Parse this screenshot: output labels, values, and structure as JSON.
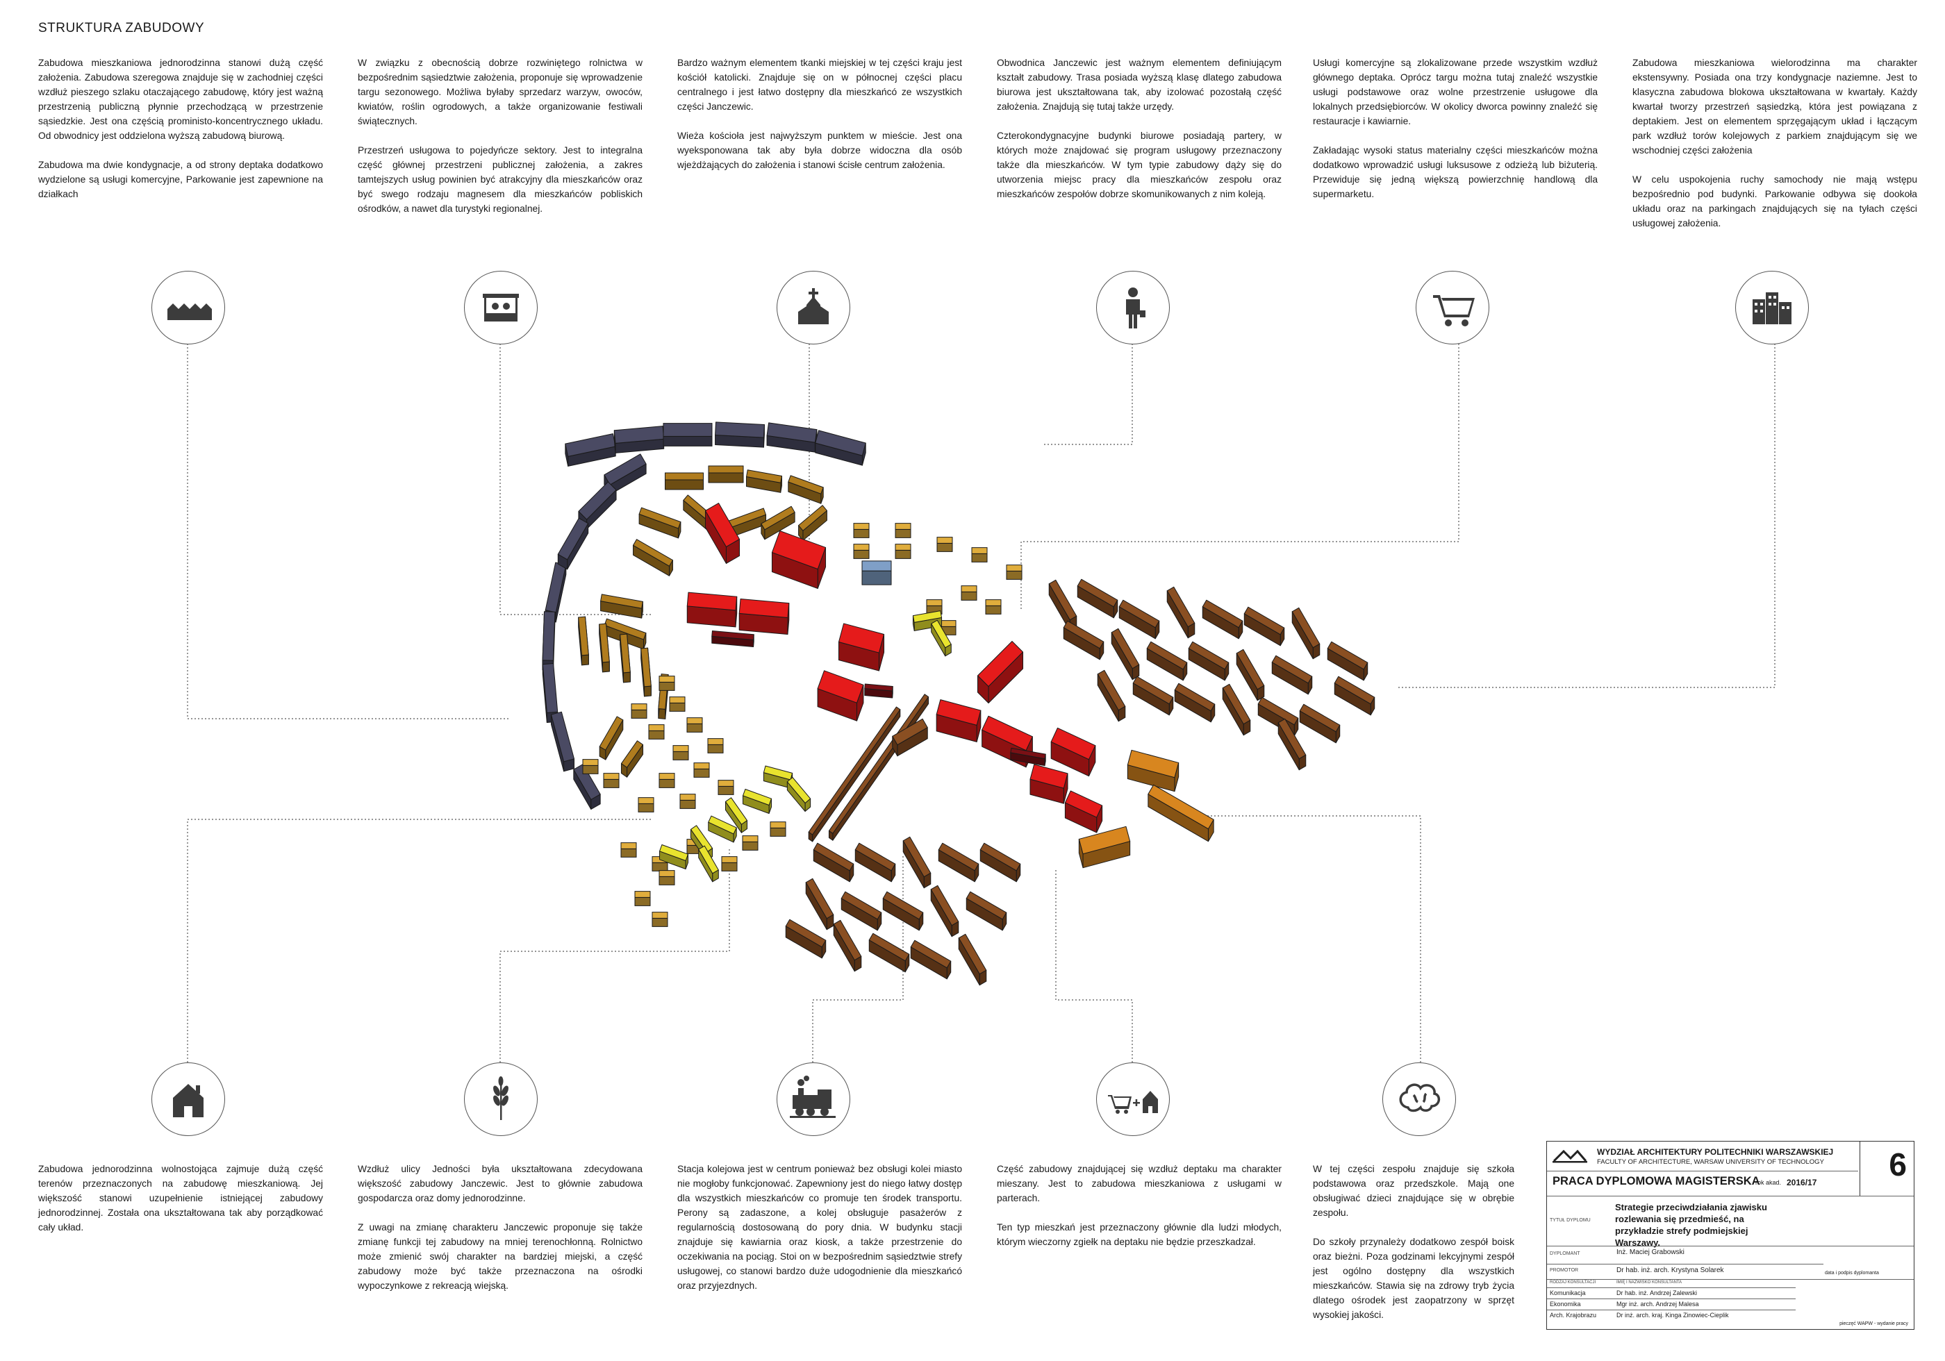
{
  "title": "STRUKTURA ZABUDOWY",
  "top_texts": [
    [
      "Zabudowa mieszkaniowa jednorodzinna stanowi dużą część założenia. Zabudowa szeregowa znajduje się w zachodniej części wzdłuż pieszego szlaku otaczającego zabudowę, który jest ważną przestrzenią publiczną płynnie przechodzącą w przestrzenie sąsiedzkie. Jest ona częścią proministo-koncentrycznego układu. Od obwodnicy jest oddzielona wyższą zabudową biurową.",
      "Zabudowa ma dwie kondygnacje, a od strony deptaka dodatkowo wydzielone są usługi komercyjne, Parkowanie jest zapewnione na działkach"
    ],
    [
      "W związku z obecnością dobrze rozwiniętego rolnictwa w bezpośrednim sąsiedztwie założenia, proponuje się wprowadzenie targu sezonowego. Możliwa byłaby sprzedarz warzyw, owoców, kwiatów, roślin ogrodowych, a także organizowanie festiwali świątecznych.",
      "Przestrzeń usługowa to pojedyńcze sektory. Jest to integralna część głównej przestrzeni publicznej założenia, a zakres tamtejszych usług powinien być atrakcyjny dla mieszkańców oraz być swego rodzaju magnesem dla mieszkańców pobliskich ośrodków, a nawet dla turystyki regionalnej."
    ],
    [
      "Bardzo ważnym elementem tkanki miejskiej w tej części kraju jest kościół katolicki. Znajduje się on w północnej części placu centralnego i jest łatwo dostępny dla mieszkańcó ze wszystkich części Janczewic.",
      "Wieża kościoła jest najwyższym punktem w mieście. Jest ona wyeksponowana tak aby była dobrze widoczna dla osób wjeżdżających do założenia i stanowi ścisłe centrum założenia."
    ],
    [
      "Obwodnica Janczewic jest ważnym elementem definiującym kształt zabudowy. Trasa posiada wyższą klasę dlatego zabudowa biurowa jest ukształtowana tak, aby izolować pozostałą część założenia. Znajdują się tutaj także urzędy.",
      "Czterokondygnacyjne budynki biurowe posiadają partery, w których może znajdować się program usługowy przeznaczony także dla mieszkańców. W tym typie zabudowy dąży się do utworzenia miejsc pracy dla mieszkańców zespołu oraz mieszkańców zespołów dobrze skomunikowanych z nim koleją."
    ],
    [
      "Usługi komercyjne  są zlokalizowane przede wszystkim wzdłuż głównego deptaka. Oprócz targu można tutaj znaleźć wszystkie usługi podstawowe oraz wolne przestrzenie usługowe dla lokalnych przedsiębiorców. W okolicy dworca powinny znaleźć się restauracje i kawiarnie.",
      "Zakładając wysoki status materialny części mieszkańców można dodatkowo wprowadzić usługi luksusowe z odzieżą lub biżuterią. Przewiduje się jedną większą powierzchnię handlową dla supermarketu."
    ],
    [
      "Zabudowa mieszkaniowa wielorodzinna ma charakter ekstensywny. Posiada ona trzy kondygnacje naziemne. Jest to klasyczna zabudowa blokowa ukształtowana w kwartały. Każdy kwartał tworzy przestrzeń sąsiedzką, która jest powiązana z deptakiem. Jest on elementem sprzęgającym układ i łączącym park wzdłuż torów kolejowych z parkiem znajdującym się we wschodniej części założenia",
      "W celu uspokojenia ruchy samochody nie mają wstępu bezpośrednio pod budynki. Parkowanie odbywa się dookoła układu oraz na parkingach znajdujących się na tyłach części usługowej założenia."
    ]
  ],
  "bottom_texts": [
    [
      "Zabudowa jednorodzinna wolnostojąca zajmuje dużą część terenów przeznaczonych na zabudowę mieszkaniową. Jej większość stanowi uzupełnienie istniejącej zabudowy jednorodzinnej. Została ona ukształtowana tak aby porządkować cały układ."
    ],
    [
      "Wzdłuż ulicy Jedności była ukształtowana zdecydowana większość zabudowy Janczewic. Jest to głównie zabudowa gospodarcza oraz domy jednorodzinne.",
      "Z uwagi na zmianę charakteru Janczewic proponuje się także zmianę funkcji tej zabudowy na mniej terenochłonną. Rolnictwo może zmienić swój charakter na bardziej miejski, a część zabudowy może być także przeznaczona na ośrodki wypoczynkowe z rekreacją wiejską."
    ],
    [
      "Stacja kolejowa jest w centrum ponieważ bez obsługi kolei miasto nie mogłoby funkcjonować. Zapewniony jest do niego łatwy dostęp dla wszystkich mieszkańców co promuje ten środek transportu. Perony są zadaszone, a kolej obsługuje pasażerów z regularnością dostosowaną do pory dnia. W budynku stacji znajduje się kawiarnia oraz kiosk, a także przestrzenie do oczekiwania na pociąg. Stoi on w bezpośrednim sąsiedztwie strefy usługowej, co stanowi bardzo duże udogodnienie dla mieszkańcó oraz przyjezdnych."
    ],
    [
      "Część zabudowy znajdującej się wzdłuż deptaku ma charakter mieszany. Jest to zabudowa mieszkaniowa z usługami w parterach.",
      "Ten typ mieszkań jest przeznaczony głównie dla ludzi młodych, którym wieczorny zgiełk na deptaku nie będzie przeszkadzał."
    ],
    [
      "W tej części zespołu znajduje się szkoła podstawowa oraz przedszkole. Mają one obsługiwać dzieci znajdujące się w obrębie zespołu.",
      "Do szkoły przynależy dodatkowo zespół boisk oraz bieżni. Poza godzinami lekcyjnymi zespół jest ogólno dostępny dla wszystkich mieszkańców. Stawia się na zdrowy tryb życia dlatego ośrodek jest zaopatrzony w sprzęt wysokiej jakości."
    ]
  ],
  "icons_top": [
    "row-houses-icon",
    "market-stall-icon",
    "church-icon",
    "office-worker-icon",
    "shopping-cart-icon",
    "apartment-blocks-icon"
  ],
  "icons_bottom": [
    "house-icon",
    "wheat-icon",
    "locomotive-icon",
    "cart-plus-house-icon",
    "brain-icon"
  ],
  "colors": {
    "office": "#4a4a63",
    "terraced": "#b07c1e",
    "service": "#e51b1b",
    "service_dark": "#7a1015",
    "church": "#7f9fc7",
    "detached": "#e0ad3c",
    "mixed": "#e8e32e",
    "multifamily": "#8a4f22",
    "school": "#d8861f",
    "rail": "#8a4f22"
  },
  "title_block": {
    "faculty_pl": "WYDZIAŁ ARCHITEKTURY POLITECHNIKI WARSZAWSKIEJ",
    "faculty_en": "FACULTY OF ARCHITECTURE, WARSAW UNIVERSITY OF TECHNOLOGY",
    "sheet_number": "6",
    "thesis_type": "PRACA DYPLOMOWA MAGISTERSKA",
    "year_label": "rok akad.",
    "year": "2016/17",
    "thesis_title_label": "TYTUŁ DYPLOMU",
    "thesis_title": "Strategie przeciwdziałania zjawisku rozlewania się przedmieść, na przykładzie strefy podmiejskiej Warszawy.",
    "graduate_label": "DYPLOMANT",
    "graduate": "Inż. Maciej Grabowski",
    "promoter_label": "PROMOTOR",
    "promoter": "Dr hab. inż. arch. Krystyna Solarek",
    "consult_label": "RODZAJ KONSULTACJI",
    "consult_name_label": "IMIĘ I NAZWISKO KONSULTANTA",
    "consultations": [
      {
        "type": "Komunikacja",
        "name": "Dr hab. inż. Andrzej Zalewski"
      },
      {
        "type": "Ekonomika",
        "name": "Mgr inż. arch. Andrzej Malesa"
      },
      {
        "type": "Arch. Krajobrazu",
        "name": "Dr inż. arch. kraj. Kinga Zinowiec-Cieplik"
      }
    ],
    "signature_label": "data i podpis dyplomanta",
    "footer": "pieczęć WAPW - wydanie pracy"
  }
}
